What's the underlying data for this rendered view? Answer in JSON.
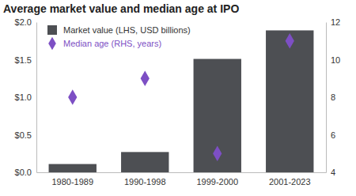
{
  "chart_data": {
    "type": "bar",
    "title": "Average market value and median age at IPO",
    "categories": [
      "1980-1989",
      "1990-1998",
      "1999-2000",
      "2001-2023"
    ],
    "series": [
      {
        "name": "Market value (LHS, USD billions)",
        "type": "bar",
        "color": "#4d4f53",
        "values": [
          0.11,
          0.27,
          1.51,
          1.89
        ]
      },
      {
        "name": "Median age (RHS, years)",
        "type": "scatter",
        "marker": "diamond",
        "color": "#7d4fc4",
        "axis": "y2",
        "values": [
          8,
          9,
          5,
          11
        ]
      }
    ],
    "ylim": [
      0,
      2
    ],
    "yticks": [
      {
        "value": 0,
        "label": "$0.0"
      },
      {
        "value": 0.5,
        "label": "$0.5"
      },
      {
        "value": 1,
        "label": "$1.0"
      },
      {
        "value": 1.5,
        "label": "$1.5"
      },
      {
        "value": 2,
        "label": "$2.0"
      }
    ],
    "y2lim": [
      4,
      12
    ],
    "y2ticks": [
      4,
      6,
      8,
      10,
      12
    ],
    "legend": "upper left",
    "grid": false
  }
}
